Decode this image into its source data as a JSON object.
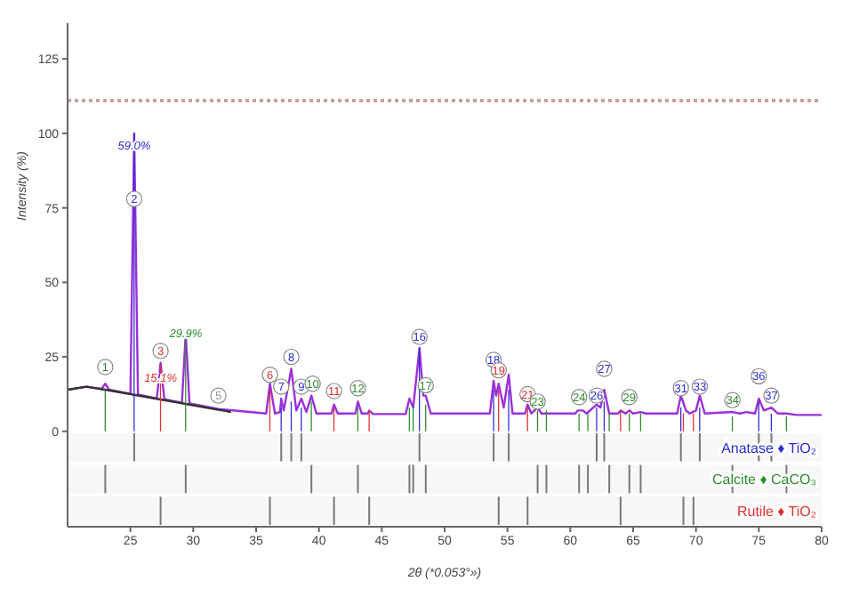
{
  "chart_data": {
    "type": "line",
    "xlabel": "2θ (*0.053°»)",
    "ylabel": "Intensity (%)",
    "xlim": [
      20,
      80
    ],
    "xticks": [
      25,
      30,
      35,
      40,
      45,
      50,
      55,
      60,
      65,
      70,
      75,
      80
    ],
    "ylim": [
      -32,
      137
    ],
    "yticks": [
      0,
      25,
      50,
      75,
      100,
      125
    ],
    "grid": false,
    "marker": "none",
    "legend": "bottom right",
    "series": [
      {
        "color": "#9b30d9",
        "x": [
          20,
          21.5,
          22.7,
          23.0,
          23.3,
          25.0,
          25.3,
          25.6,
          27.1,
          27.4,
          27.7,
          29.1,
          29.4,
          29.7,
          32,
          35.8,
          36.1,
          36.5,
          36.9,
          37.0,
          37.2,
          37.8,
          38.2,
          38.6,
          39.0,
          39.4,
          39.8,
          41.0,
          41.2,
          41.5,
          42.9,
          43.1,
          43.4,
          43.9,
          44.0,
          44.3,
          46.9,
          47.2,
          47.5,
          48.0,
          48.3,
          48.5,
          48.9,
          53.6,
          53.9,
          54.1,
          54.3,
          54.7,
          55.1,
          55.4,
          56.4,
          56.6,
          56.9,
          57.4,
          57.7,
          60.4,
          60.6,
          61.0,
          61.3,
          62.1,
          62.4,
          62.7,
          63.1,
          63.8,
          64.0,
          64.4,
          64.7,
          65.0,
          65.6,
          66,
          68.5,
          68.8,
          69.2,
          69.5,
          70.0,
          70.3,
          70.7,
          72.9,
          73.5,
          74.0,
          74.7,
          75.0,
          75.4,
          76.0,
          76.5,
          77.2,
          78,
          80
        ],
        "values": [
          14,
          15,
          14.2,
          16,
          14,
          12.6,
          100,
          12.4,
          11,
          23,
          10.8,
          9.6,
          33,
          9.4,
          7.5,
          6,
          16,
          6,
          6.5,
          11,
          7,
          21,
          7,
          11,
          6.5,
          12,
          6,
          6,
          9,
          6,
          6,
          10,
          6,
          6,
          7,
          5.8,
          5.8,
          11,
          8,
          28,
          12,
          12,
          6,
          6,
          17,
          12,
          16,
          8,
          19,
          6,
          6,
          9,
          6,
          8,
          6,
          6,
          7,
          7,
          6,
          9,
          8,
          14,
          6,
          6,
          7,
          6,
          7,
          6,
          6.5,
          6,
          6,
          12,
          7,
          6,
          7,
          12,
          6,
          6.5,
          6,
          6.5,
          6,
          11,
          7,
          8,
          6,
          6,
          5.5,
          5.5
        ]
      },
      {
        "color": "#333333",
        "x": [
          20,
          21.5,
          23,
          25,
          27,
          29,
          31,
          33
        ],
        "values": [
          14,
          15,
          14,
          12.5,
          11,
          9.5,
          8,
          6.5
        ]
      },
      {
        "type": "bar",
        "name": "Anatase ♦ TiO₂",
        "color": "#2b2bd6",
        "x": [
          25.3,
          37.0,
          37.8,
          38.6,
          48.0,
          53.9,
          55.1,
          62.1,
          62.7,
          68.8,
          70.3,
          75.0,
          76.0
        ],
        "values": [
          100,
          8,
          10,
          8,
          28,
          14,
          14,
          8,
          10,
          8,
          8,
          10,
          6
        ]
      },
      {
        "type": "bar",
        "name": "Calcite ♦ CaCO₃",
        "color": "#2e8b2e",
        "x": [
          23.0,
          29.4,
          39.4,
          43.1,
          47.2,
          47.5,
          48.5,
          57.4,
          58.1,
          60.7,
          61.4,
          63.1,
          64.7,
          65.6,
          72.9,
          77.2
        ],
        "values": [
          14,
          31,
          10,
          8,
          8,
          8,
          9,
          7,
          7,
          6,
          6,
          6,
          6,
          6,
          5,
          5
        ]
      },
      {
        "type": "bar",
        "name": "Rutile ♦ TiO₂",
        "color": "#e03030",
        "x": [
          27.4,
          36.1,
          41.2,
          44.0,
          54.3,
          56.6,
          64.0,
          69.0,
          69.8
        ],
        "values": [
          22,
          14,
          8,
          7,
          14,
          8,
          7,
          6,
          6
        ]
      }
    ],
    "ref_lines": [
      {
        "axis": "y",
        "value": 111,
        "color": "#c8a0a0",
        "line_style": "dotted"
      }
    ],
    "annotations": [
      {
        "text": "1",
        "x": 23.0,
        "y": 21.6
      },
      {
        "text": "2",
        "x": 25.3,
        "y": 78
      },
      {
        "text": "59.0%",
        "x": 25.3,
        "y": 96
      },
      {
        "text": "3",
        "x": 27.4,
        "y": 27
      },
      {
        "text": "15.1%",
        "x": 27.4,
        "y": 18
      },
      {
        "text": "29.9%",
        "x": 29.4,
        "y": 33
      },
      {
        "text": "5",
        "x": 32.0,
        "y": 12
      },
      {
        "text": "6",
        "x": 36.1,
        "y": 19
      },
      {
        "text": "7",
        "x": 37.0,
        "y": 15
      },
      {
        "text": "8",
        "x": 37.8,
        "y": 25
      },
      {
        "text": "9",
        "x": 38.6,
        "y": 15
      },
      {
        "text": "10",
        "x": 39.5,
        "y": 16
      },
      {
        "text": "11",
        "x": 41.2,
        "y": 13.5
      },
      {
        "text": "12",
        "x": 43.1,
        "y": 14.5
      },
      {
        "text": "16",
        "x": 48.0,
        "y": 31.7
      },
      {
        "text": "17",
        "x": 48.5,
        "y": 15.5
      },
      {
        "text": "18",
        "x": 53.9,
        "y": 24
      },
      {
        "text": "19",
        "x": 54.3,
        "y": 20.5
      },
      {
        "text": "21",
        "x": 56.6,
        "y": 12.5
      },
      {
        "text": "23",
        "x": 57.4,
        "y": 10
      },
      {
        "text": "24",
        "x": 60.7,
        "y": 11.5
      },
      {
        "text": "26",
        "x": 62.1,
        "y": 12
      },
      {
        "text": "27",
        "x": 62.7,
        "y": 21
      },
      {
        "text": "29",
        "x": 64.7,
        "y": 11.5
      },
      {
        "text": "31",
        "x": 68.8,
        "y": 14.5
      },
      {
        "text": "33",
        "x": 70.3,
        "y": 15
      },
      {
        "text": "34",
        "x": 72.9,
        "y": 10.5
      },
      {
        "text": "36",
        "x": 75.0,
        "y": 18.5
      },
      {
        "text": "37",
        "x": 76.0,
        "y": 12
      }
    ]
  }
}
